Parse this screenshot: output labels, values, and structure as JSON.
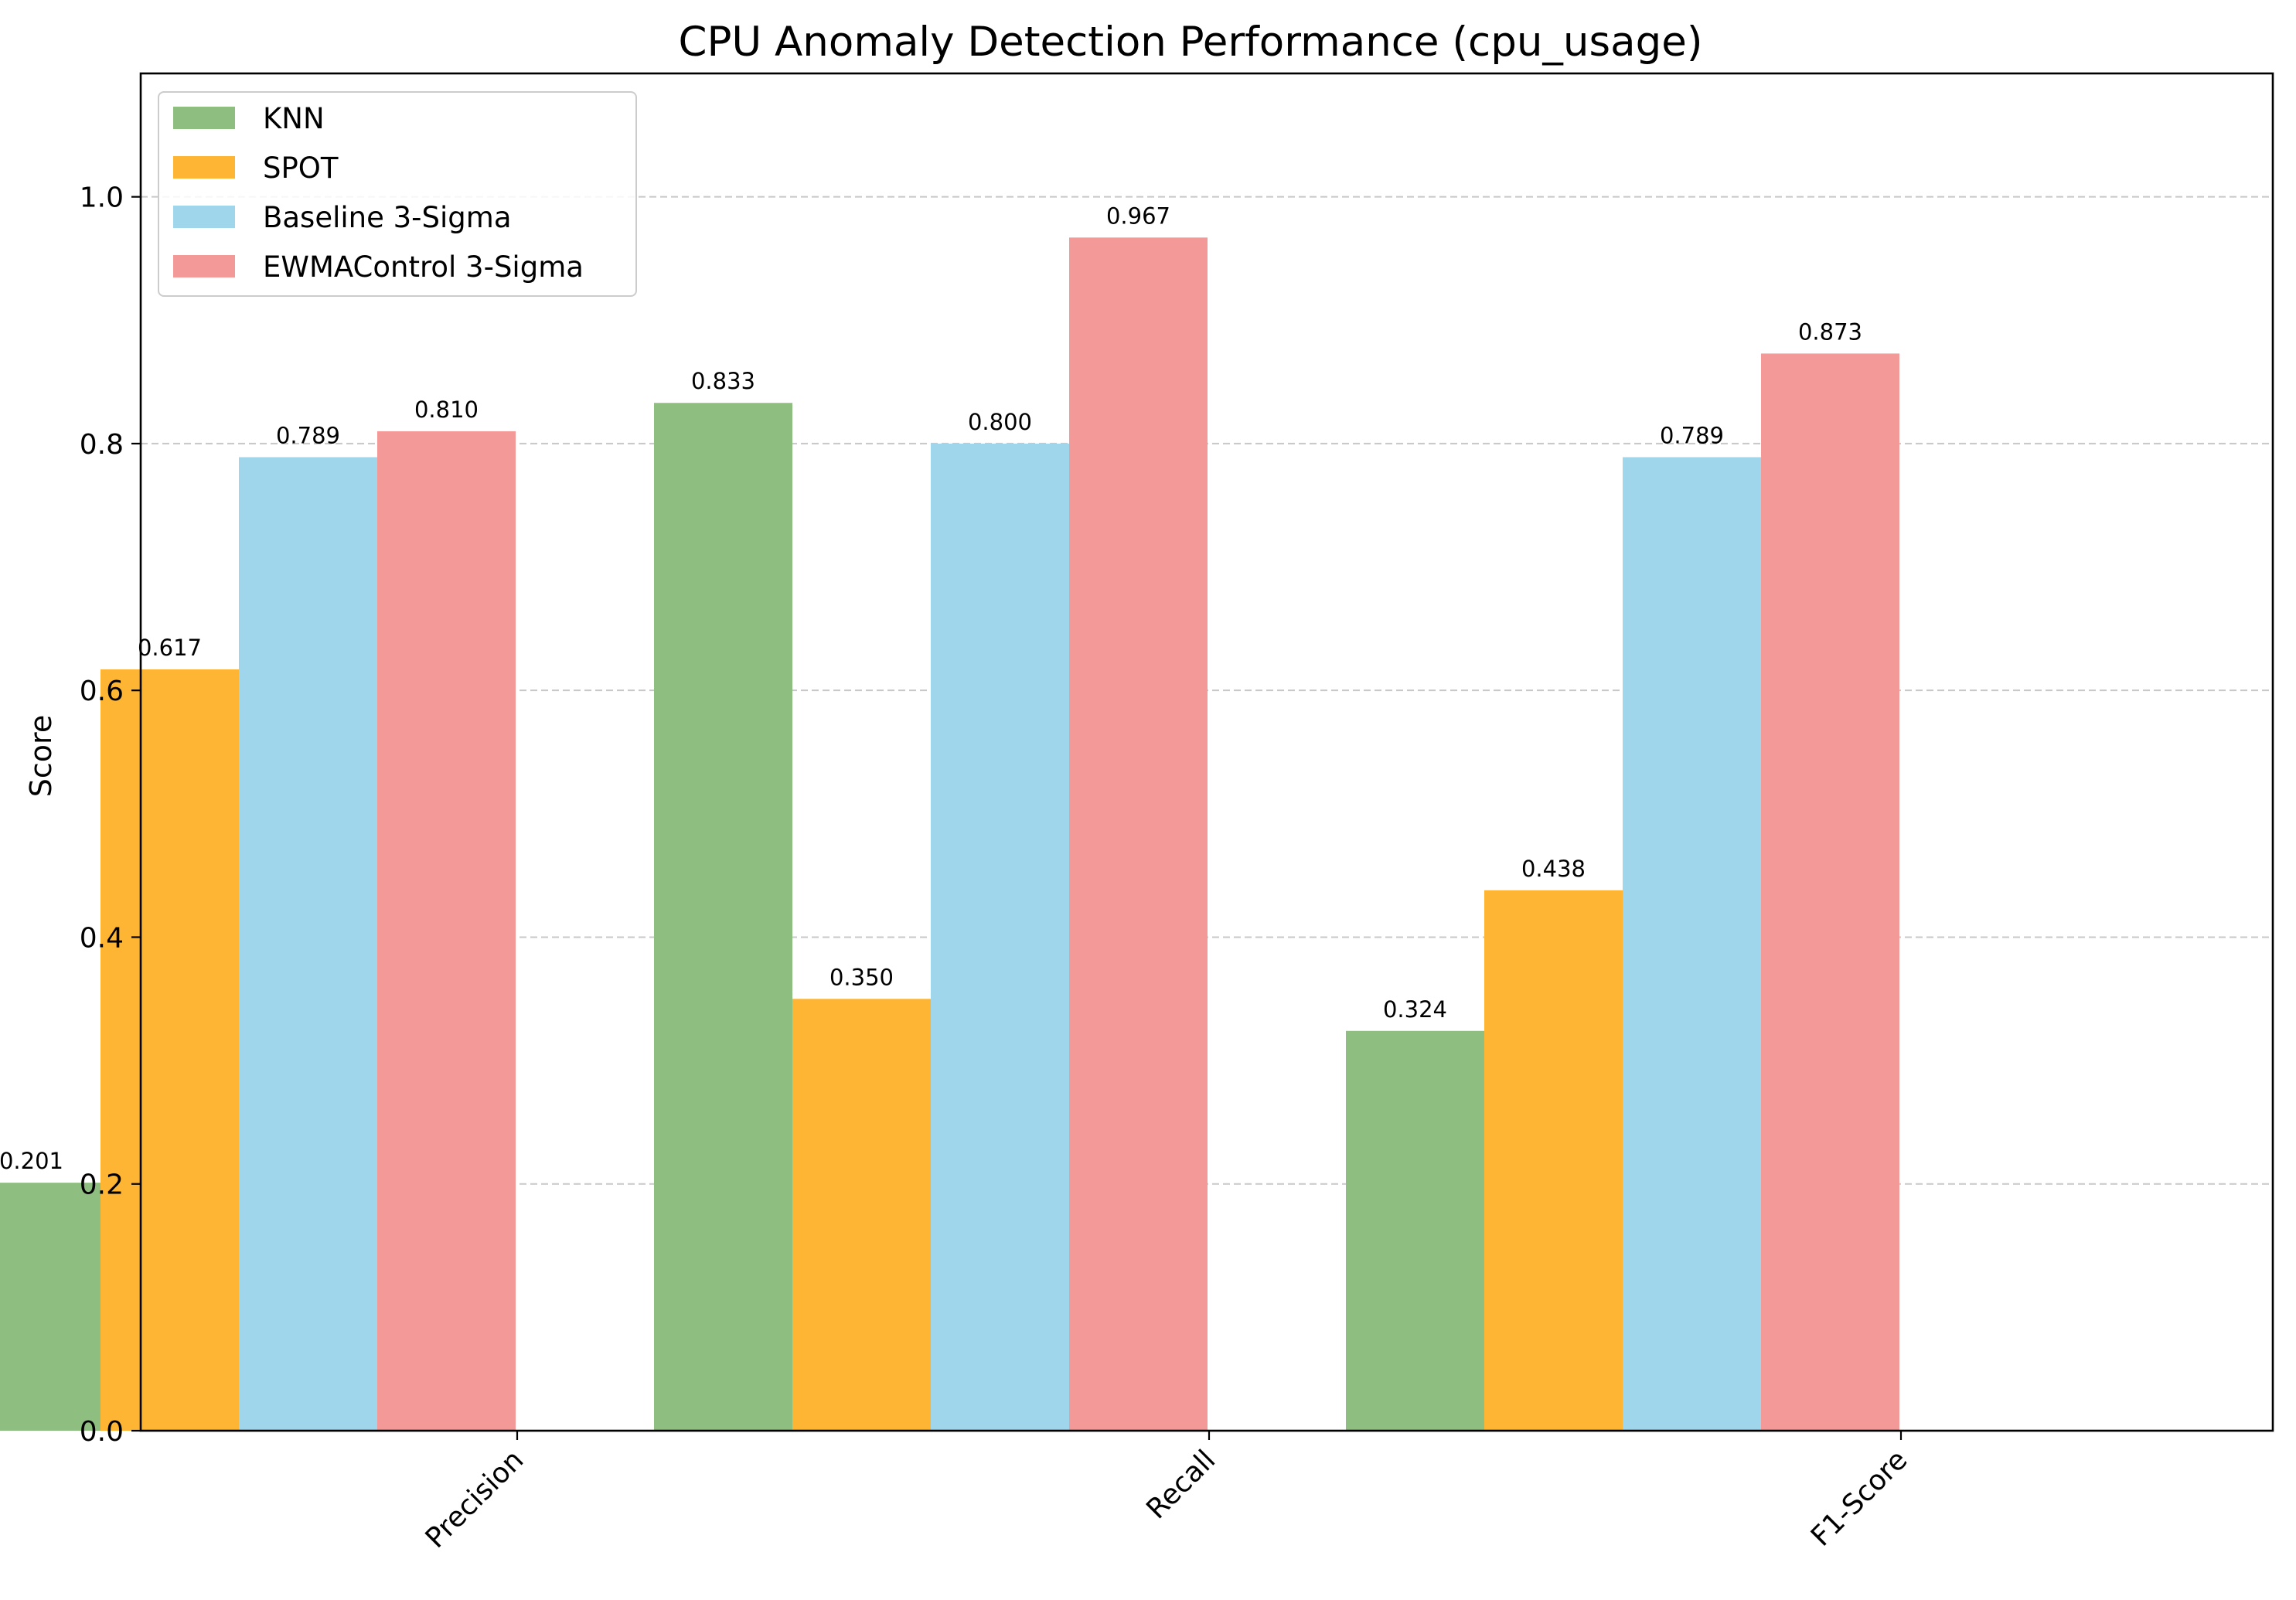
{
  "chart_data": {
    "type": "bar",
    "title": "CPU Anomaly Detection Performance (cpu_usage)",
    "xlabel": "",
    "ylabel": "Score",
    "categories": [
      "Precision",
      "Recall",
      "F1-Score"
    ],
    "ylim": [
      0,
      1.1
    ],
    "yticks": [
      0.0,
      0.2,
      0.4,
      0.6,
      0.8,
      1.0
    ],
    "ytick_labels": [
      "0.0",
      "0.2",
      "0.4",
      "0.6",
      "0.8",
      "1.0"
    ],
    "grid": "y-dashed",
    "legend_position": "top-left",
    "series": [
      {
        "name": "KNN",
        "color": "#8fbf80",
        "values": [
          0.201,
          0.833,
          0.324
        ],
        "labels": [
          "0.201",
          "0.833",
          "0.324"
        ]
      },
      {
        "name": "SPOT",
        "color": "#ffb534",
        "values": [
          0.617,
          0.35,
          0.438
        ],
        "labels": [
          "0.617",
          "0.350",
          "0.438"
        ]
      },
      {
        "name": "Baseline 3-Sigma",
        "color": "#9fd6ec",
        "values": [
          0.789,
          0.8,
          0.789
        ],
        "labels": [
          "0.789",
          "0.800",
          "0.789"
        ]
      },
      {
        "name": "EWMAControl 3-Sigma",
        "color": "#f39a99",
        "values": [
          0.81,
          0.967,
          0.873
        ],
        "labels": [
          "0.810",
          "0.967",
          "0.873"
        ]
      }
    ]
  }
}
